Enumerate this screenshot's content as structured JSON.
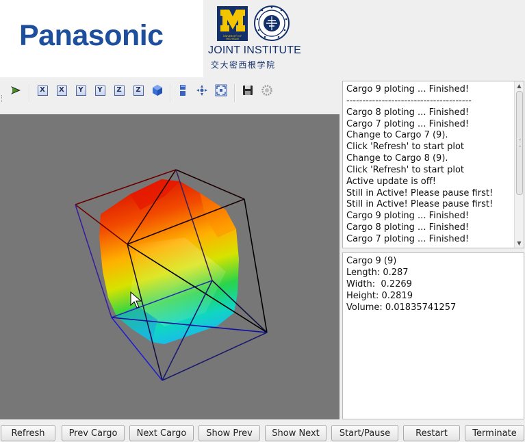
{
  "header": {
    "brand_logo_text": "Panasonic",
    "institute_logo_text": "JOINT INSTITUTE",
    "institute_logo_text_cn": "交大密西根学院",
    "colors": {
      "panasonic_blue": "#1d4f9c",
      "umich_blue": "#13306b",
      "umich_maize": "#f2c500"
    }
  },
  "toolbar": {
    "icons": [
      "select-arrow-icon",
      "view-x-icon",
      "view-neg-x-icon",
      "view-y-icon",
      "view-neg-y-icon",
      "view-z-icon",
      "view-neg-z-icon",
      "view-iso-icon",
      "perspective-icon",
      "pan-icon",
      "fit-all-icon",
      "save-icon",
      "settings-icon"
    ],
    "axis_labels": {
      "x1": "X",
      "x2": "X",
      "y1": "Y",
      "y2": "Y",
      "z1": "Z",
      "z2": "Z"
    }
  },
  "log": {
    "lines": [
      "Cargo 9 ploting ...  Finished!",
      "---------------------------------------",
      "Cargo 8 ploting ...  Finished!",
      "Cargo 7 ploting ...  Finished!",
      "Change to Cargo 7 (9).",
      "Click 'Refresh' to start plot",
      "Change to Cargo 8 (9).",
      "Click 'Refresh' to start plot",
      "Active update is off!",
      "Still in Active!  Please pause first!",
      "Still in Active!  Please pause first!",
      "Cargo 9 ploting ...  Finished!",
      "Cargo 8 ploting ...  Finished!",
      "Cargo 7 ploting ...  Finished!"
    ]
  },
  "info": {
    "lines": [
      "Cargo 9 (9)",
      "Length: 0.287",
      "Width:  0.2269",
      "Height: 0.2819",
      "Volume: 0.01835741257"
    ]
  },
  "buttons": {
    "refresh": "Refresh",
    "prev_cargo": "Prev Cargo",
    "next_cargo": "Next Cargo",
    "show_prev": "Show Prev",
    "show_next": "Show Next",
    "start_pause": "Start/Pause",
    "restart": "Restart",
    "terminate": "Terminate"
  },
  "viewport": {
    "background": "#777777"
  }
}
